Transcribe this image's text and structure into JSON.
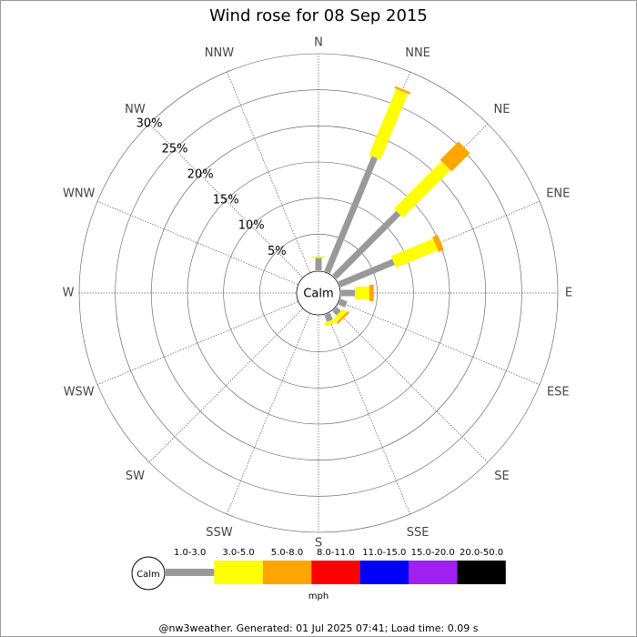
{
  "chart_data": {
    "type": "windrose",
    "title": "Wind rose for 08 Sep 2015",
    "categories": [
      "N",
      "NNE",
      "NE",
      "ENE",
      "E",
      "ESE",
      "SE",
      "SSE",
      "S",
      "SSW",
      "SW",
      "WSW",
      "W",
      "WNW",
      "NW",
      "NNW"
    ],
    "series": [
      {
        "name": "1.0-3.0",
        "color": "#999999",
        "values": [
          1.7,
          17.2,
          12.5,
          8.1,
          1.9,
          1.0,
          0.8,
          1.0,
          0,
          0,
          0,
          0,
          0,
          0,
          0,
          0
        ]
      },
      {
        "name": "3.0-5.0",
        "color": "#ffff00",
        "values": [
          0.2,
          9.9,
          9.3,
          6.3,
          2.0,
          0,
          0.7,
          0.5,
          0,
          0,
          0,
          0,
          0,
          0,
          0,
          0
        ]
      },
      {
        "name": "5.0-8.0",
        "color": "#ffa500",
        "values": [
          0,
          0.3,
          3.6,
          0.8,
          0.6,
          0,
          0.3,
          0,
          0,
          0,
          0,
          0,
          0,
          0,
          0,
          0
        ]
      },
      {
        "name": "8.0-11.0",
        "color": "#ff0000",
        "values": [
          0,
          0,
          0,
          0,
          0,
          0,
          0,
          0,
          0,
          0,
          0,
          0,
          0,
          0,
          0,
          0
        ]
      },
      {
        "name": "11.0-15.0",
        "color": "#0000ff",
        "values": [
          0,
          0,
          0,
          0,
          0,
          0,
          0,
          0,
          0,
          0,
          0,
          0,
          0,
          0,
          0,
          0
        ]
      },
      {
        "name": "15.0-20.0",
        "color": "#a020f0",
        "values": [
          0,
          0,
          0,
          0,
          0,
          0,
          0,
          0,
          0,
          0,
          0,
          0,
          0,
          0,
          0,
          0
        ]
      },
      {
        "name": "20.0-50.0",
        "color": "#000000",
        "values": [
          0,
          0,
          0,
          0,
          0,
          0,
          0,
          0,
          0,
          0,
          0,
          0,
          0,
          0,
          0,
          0
        ]
      }
    ],
    "ylim": [
      0,
      30
    ],
    "yticks": [
      {
        "value": 5,
        "label": "5%"
      },
      {
        "value": 10,
        "label": "10%"
      },
      {
        "value": 15,
        "label": "15%"
      },
      {
        "value": 20,
        "label": "20%"
      },
      {
        "value": 25,
        "label": "25%"
      },
      {
        "value": 30,
        "label": "30%"
      }
    ],
    "calm_label": "Calm",
    "unit": "mph",
    "footer": "@nw3weather. Generated: 01 Jul 2025 07:41; Load time: 0.09 s"
  }
}
